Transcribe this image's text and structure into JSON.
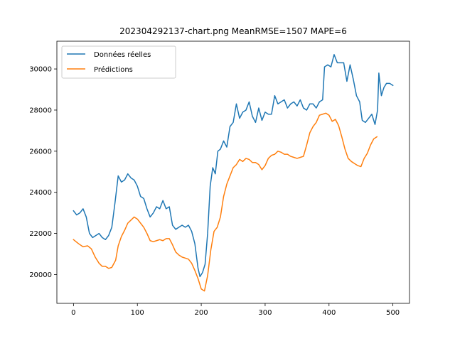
{
  "chart_data": {
    "type": "line",
    "title": "202304292137-chart.png MeanRMSE=1507 MAPE=6",
    "xlabel": "",
    "ylabel": "",
    "xlim": [
      -26,
      526
    ],
    "ylim": [
      18600,
      31350
    ],
    "xticks": [
      0,
      100,
      200,
      300,
      400,
      500
    ],
    "yticks": [
      20000,
      22000,
      24000,
      26000,
      28000,
      30000
    ],
    "grid": false,
    "legend": "upper-left",
    "series": [
      {
        "name": "Données réelles",
        "color": "#1f77b4",
        "points": [
          [
            0,
            23100
          ],
          [
            5,
            22900
          ],
          [
            10,
            23000
          ],
          [
            15,
            23200
          ],
          [
            20,
            22800
          ],
          [
            25,
            22000
          ],
          [
            30,
            21800
          ],
          [
            35,
            21900
          ],
          [
            40,
            22000
          ],
          [
            45,
            21800
          ],
          [
            50,
            21700
          ],
          [
            55,
            21900
          ],
          [
            60,
            22300
          ],
          [
            65,
            23500
          ],
          [
            70,
            24800
          ],
          [
            75,
            24500
          ],
          [
            80,
            24600
          ],
          [
            85,
            24900
          ],
          [
            90,
            24700
          ],
          [
            95,
            24600
          ],
          [
            100,
            24300
          ],
          [
            105,
            23800
          ],
          [
            110,
            23700
          ],
          [
            115,
            23200
          ],
          [
            120,
            22800
          ],
          [
            125,
            23000
          ],
          [
            130,
            23300
          ],
          [
            135,
            23200
          ],
          [
            140,
            23600
          ],
          [
            145,
            23200
          ],
          [
            150,
            23300
          ],
          [
            155,
            22400
          ],
          [
            160,
            22200
          ],
          [
            165,
            22300
          ],
          [
            170,
            22400
          ],
          [
            175,
            22300
          ],
          [
            180,
            22400
          ],
          [
            185,
            22100
          ],
          [
            190,
            21500
          ],
          [
            195,
            20300
          ],
          [
            198,
            19900
          ],
          [
            202,
            20100
          ],
          [
            206,
            20500
          ],
          [
            210,
            22000
          ],
          [
            214,
            24300
          ],
          [
            218,
            25200
          ],
          [
            222,
            24900
          ],
          [
            226,
            26000
          ],
          [
            230,
            26100
          ],
          [
            235,
            26500
          ],
          [
            240,
            26200
          ],
          [
            245,
            27200
          ],
          [
            250,
            27400
          ],
          [
            255,
            28300
          ],
          [
            260,
            27600
          ],
          [
            265,
            27900
          ],
          [
            270,
            28000
          ],
          [
            275,
            28400
          ],
          [
            280,
            27700
          ],
          [
            285,
            27400
          ],
          [
            290,
            28100
          ],
          [
            295,
            27500
          ],
          [
            300,
            27900
          ],
          [
            305,
            27800
          ],
          [
            310,
            27800
          ],
          [
            315,
            28700
          ],
          [
            320,
            28300
          ],
          [
            325,
            28400
          ],
          [
            330,
            28500
          ],
          [
            335,
            28100
          ],
          [
            340,
            28300
          ],
          [
            345,
            28400
          ],
          [
            350,
            28200
          ],
          [
            355,
            28500
          ],
          [
            360,
            28100
          ],
          [
            365,
            28000
          ],
          [
            370,
            28300
          ],
          [
            375,
            28300
          ],
          [
            380,
            28100
          ],
          [
            385,
            28400
          ],
          [
            390,
            28500
          ],
          [
            393,
            30100
          ],
          [
            398,
            30200
          ],
          [
            403,
            30100
          ],
          [
            408,
            30700
          ],
          [
            413,
            30300
          ],
          [
            418,
            30300
          ],
          [
            423,
            30300
          ],
          [
            428,
            29400
          ],
          [
            433,
            30200
          ],
          [
            438,
            29500
          ],
          [
            443,
            28700
          ],
          [
            448,
            28400
          ],
          [
            452,
            27500
          ],
          [
            457,
            27400
          ],
          [
            462,
            27600
          ],
          [
            467,
            27800
          ],
          [
            472,
            27300
          ],
          [
            476,
            28000
          ],
          [
            478,
            29800
          ],
          [
            482,
            28700
          ],
          [
            486,
            29100
          ],
          [
            490,
            29300
          ],
          [
            495,
            29300
          ],
          [
            500,
            29200
          ]
        ]
      },
      {
        "name": "Prédictions",
        "color": "#ff7f0e",
        "points": [
          [
            0,
            21700
          ],
          [
            8,
            21500
          ],
          [
            15,
            21350
          ],
          [
            22,
            21400
          ],
          [
            28,
            21250
          ],
          [
            34,
            20850
          ],
          [
            40,
            20550
          ],
          [
            45,
            20400
          ],
          [
            50,
            20400
          ],
          [
            55,
            20300
          ],
          [
            60,
            20350
          ],
          [
            66,
            20700
          ],
          [
            70,
            21400
          ],
          [
            75,
            21850
          ],
          [
            80,
            22150
          ],
          [
            85,
            22500
          ],
          [
            90,
            22650
          ],
          [
            95,
            22800
          ],
          [
            100,
            22700
          ],
          [
            105,
            22500
          ],
          [
            110,
            22300
          ],
          [
            115,
            22000
          ],
          [
            120,
            21650
          ],
          [
            125,
            21600
          ],
          [
            130,
            21650
          ],
          [
            135,
            21700
          ],
          [
            140,
            21650
          ],
          [
            145,
            21750
          ],
          [
            150,
            21750
          ],
          [
            155,
            21450
          ],
          [
            160,
            21100
          ],
          [
            165,
            20950
          ],
          [
            170,
            20850
          ],
          [
            175,
            20800
          ],
          [
            180,
            20750
          ],
          [
            185,
            20550
          ],
          [
            190,
            20200
          ],
          [
            195,
            19800
          ],
          [
            200,
            19300
          ],
          [
            205,
            19200
          ],
          [
            210,
            19950
          ],
          [
            215,
            21200
          ],
          [
            220,
            22100
          ],
          [
            225,
            22300
          ],
          [
            230,
            22800
          ],
          [
            235,
            23800
          ],
          [
            240,
            24400
          ],
          [
            245,
            24800
          ],
          [
            250,
            25200
          ],
          [
            255,
            25350
          ],
          [
            260,
            25600
          ],
          [
            265,
            25500
          ],
          [
            270,
            25650
          ],
          [
            275,
            25600
          ],
          [
            280,
            25450
          ],
          [
            285,
            25450
          ],
          [
            290,
            25350
          ],
          [
            295,
            25100
          ],
          [
            300,
            25300
          ],
          [
            305,
            25650
          ],
          [
            310,
            25800
          ],
          [
            315,
            25850
          ],
          [
            320,
            26000
          ],
          [
            325,
            25950
          ],
          [
            330,
            25850
          ],
          [
            335,
            25850
          ],
          [
            340,
            25750
          ],
          [
            345,
            25700
          ],
          [
            350,
            25650
          ],
          [
            355,
            25700
          ],
          [
            360,
            25750
          ],
          [
            365,
            26300
          ],
          [
            370,
            26900
          ],
          [
            375,
            27200
          ],
          [
            380,
            27400
          ],
          [
            385,
            27750
          ],
          [
            390,
            27800
          ],
          [
            395,
            27850
          ],
          [
            400,
            27750
          ],
          [
            405,
            27450
          ],
          [
            410,
            27550
          ],
          [
            415,
            27250
          ],
          [
            420,
            26700
          ],
          [
            425,
            26100
          ],
          [
            430,
            25650
          ],
          [
            435,
            25500
          ],
          [
            440,
            25400
          ],
          [
            445,
            25300
          ],
          [
            450,
            25250
          ],
          [
            455,
            25650
          ],
          [
            460,
            25900
          ],
          [
            465,
            26300
          ],
          [
            470,
            26600
          ],
          [
            475,
            26700
          ]
        ]
      }
    ]
  }
}
